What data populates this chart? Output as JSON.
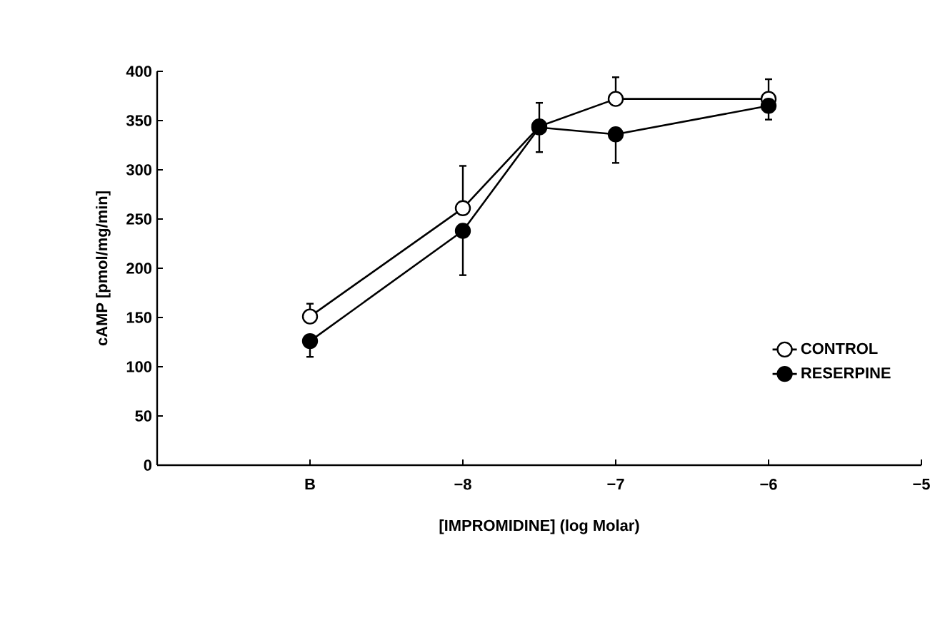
{
  "chart_data": {
    "type": "line",
    "xlabel": "[IMPROMIDINE] (log Molar)",
    "ylabel": "cAMP [pmol/mg/min]",
    "x": [
      -9,
      -8,
      -7.5,
      -7,
      -6
    ],
    "series": [
      {
        "name": "CONTROL",
        "color": "#ffffff",
        "values": [
          151,
          261,
          344,
          372,
          372
        ],
        "errors": [
          [
            151,
            164
          ],
          [
            261,
            304
          ],
          null,
          [
            372,
            394
          ],
          [
            372,
            392
          ]
        ]
      },
      {
        "name": "RESERPINE",
        "color": "#000000",
        "values": [
          126,
          238,
          343,
          336,
          365
        ],
        "errors": [
          [
            110,
            126
          ],
          [
            193,
            238
          ],
          25,
          [
            307,
            336
          ],
          [
            351,
            365
          ]
        ]
      }
    ],
    "xlim": [
      -10,
      -5
    ],
    "xticks": [
      {
        "value": -9,
        "label": "B"
      },
      {
        "value": -8,
        "label": "−8"
      },
      {
        "value": -7,
        "label": "−7"
      },
      {
        "value": -6,
        "label": "−6"
      },
      {
        "value": -5,
        "label": "−5"
      }
    ],
    "ylim": [
      0,
      400
    ],
    "yticks": [
      0,
      50,
      100,
      150,
      200,
      250,
      300,
      350,
      400
    ],
    "marker": "circle",
    "line_style": "solid",
    "legend": "bottom right",
    "grid": false
  }
}
